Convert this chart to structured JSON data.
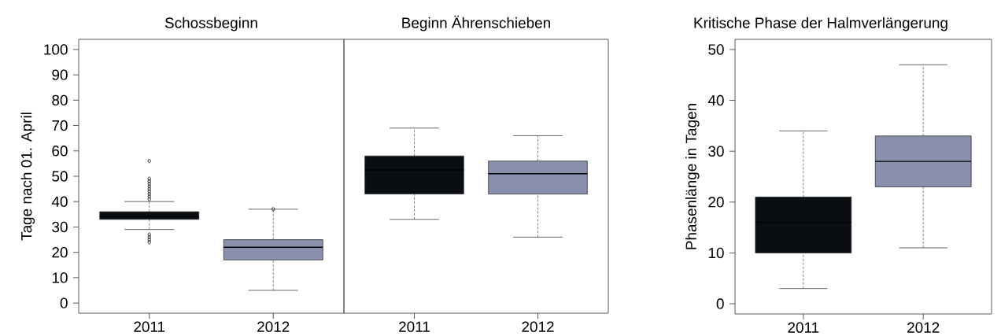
{
  "chart_data": [
    {
      "type": "box",
      "title": "Schossbeginn",
      "ylabel": "Tage nach 01. April",
      "categories": [
        "2011",
        "2012"
      ],
      "colors": [
        "#0a0e13",
        "#8890ad"
      ],
      "boxes": [
        {
          "low": 29,
          "q1": 33,
          "median": 34,
          "q3": 36,
          "high": 40,
          "outliers": [
            24,
            25,
            26,
            27,
            41,
            42,
            43,
            44,
            45,
            46,
            47,
            48,
            49,
            56
          ]
        },
        {
          "low": 5,
          "q1": 17,
          "median": 22,
          "q3": 25,
          "high": 37,
          "outliers": [
            37
          ]
        }
      ],
      "ylim": [
        -4,
        104
      ],
      "yticks": [
        0,
        10,
        20,
        30,
        40,
        50,
        60,
        70,
        80,
        90,
        100
      ]
    },
    {
      "type": "box",
      "title": "Beginn Ährenschieben",
      "categories": [
        "2011",
        "2012"
      ],
      "colors": [
        "#0a0e13",
        "#8890ad"
      ],
      "boxes": [
        {
          "low": 33,
          "q1": 43,
          "median": 52.5,
          "q3": 58,
          "high": 69
        },
        {
          "low": 26,
          "q1": 43,
          "median": 51,
          "q3": 56,
          "high": 66
        }
      ],
      "ylim": [
        -4,
        104
      ],
      "tick_labels": "x"
    },
    {
      "type": "box",
      "title": "Kritische Phase der Halmverlängerung",
      "ylabel": "Phasenlänge in Tagen",
      "categories": [
        "2011",
        "2012"
      ],
      "colors": [
        "#0a0e13",
        "#8890ad"
      ],
      "boxes": [
        {
          "low": 3,
          "q1": 10,
          "median": 16,
          "q3": 21,
          "high": 34
        },
        {
          "low": 11,
          "q1": 23,
          "median": 28,
          "q3": 33,
          "high": 47
        }
      ],
      "ylim": [
        -2,
        52
      ],
      "yticks": [
        0,
        10,
        20,
        30,
        40,
        50
      ]
    }
  ]
}
